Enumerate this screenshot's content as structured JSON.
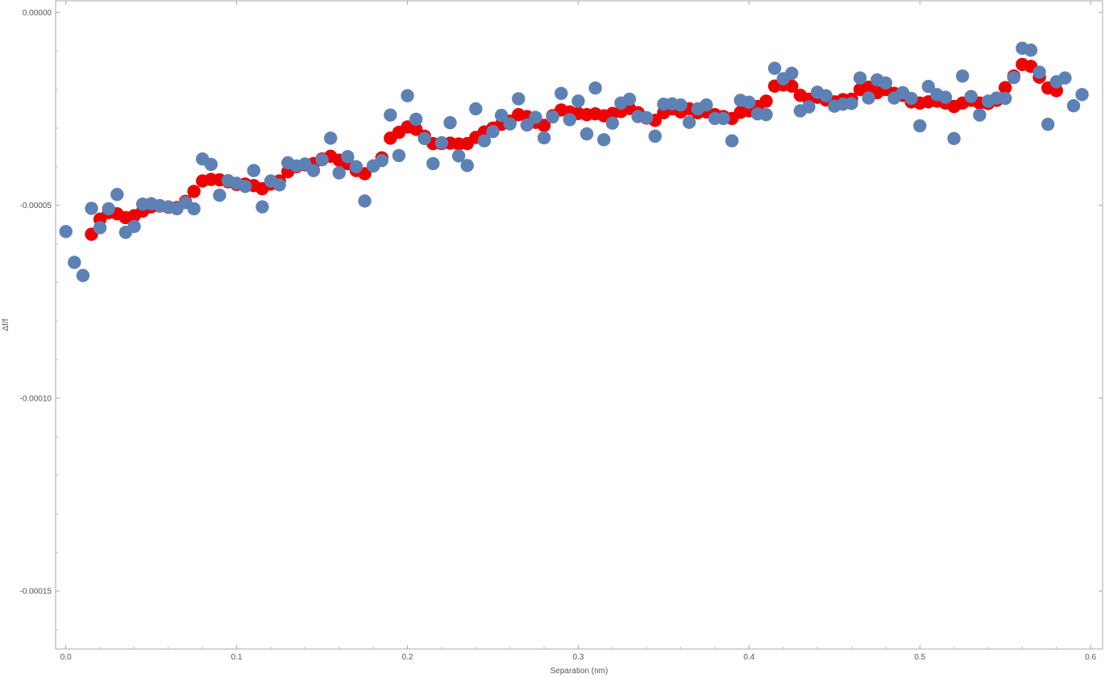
{
  "chart_data": {
    "type": "scatter",
    "xlabel": "Separation (nm)",
    "ylabel": "Δf/f",
    "xlim": [
      -0.006,
      0.607
    ],
    "ylim": [
      -0.000165,
      3e-06
    ],
    "xticks": [
      0.0,
      0.1,
      0.2,
      0.3,
      0.4,
      0.5,
      0.6
    ],
    "xtick_labels": [
      "0.0",
      "0.1",
      "0.2",
      "0.3",
      "0.4",
      "0.5",
      "0.6"
    ],
    "yticks": [
      0.0,
      -5e-05,
      -0.0001,
      -0.00015
    ],
    "ytick_labels": [
      "0.00000",
      "-0.00005",
      "-0.00010",
      "-0.00015"
    ],
    "grid": false,
    "series": [
      {
        "color": "#ee0000",
        "x": [
          0.015,
          0.02,
          0.025,
          0.03,
          0.035,
          0.04,
          0.045,
          0.05,
          0.055,
          0.06,
          0.065,
          0.07,
          0.075,
          0.08,
          0.085,
          0.09,
          0.095,
          0.1,
          0.105,
          0.11,
          0.115,
          0.12,
          0.125,
          0.13,
          0.135,
          0.14,
          0.145,
          0.15,
          0.155,
          0.16,
          0.165,
          0.17,
          0.175,
          0.18,
          0.185,
          0.19,
          0.195,
          0.2,
          0.205,
          0.21,
          0.215,
          0.22,
          0.225,
          0.23,
          0.235,
          0.24,
          0.245,
          0.25,
          0.255,
          0.26,
          0.265,
          0.27,
          0.275,
          0.28,
          0.285,
          0.29,
          0.295,
          0.3,
          0.305,
          0.31,
          0.315,
          0.32,
          0.325,
          0.33,
          0.335,
          0.34,
          0.345,
          0.35,
          0.355,
          0.36,
          0.365,
          0.37,
          0.375,
          0.38,
          0.385,
          0.39,
          0.395,
          0.4,
          0.405,
          0.41,
          0.415,
          0.42,
          0.425,
          0.43,
          0.435,
          0.44,
          0.445,
          0.45,
          0.455,
          0.46,
          0.465,
          0.47,
          0.475,
          0.48,
          0.485,
          0.49,
          0.495,
          0.5,
          0.505,
          0.51,
          0.515,
          0.52,
          0.525,
          0.53,
          0.535,
          0.54,
          0.545,
          0.55,
          0.555,
          0.56,
          0.565,
          0.57,
          0.575,
          0.58
        ],
        "y": [
          -5.75e-05,
          -5.36e-05,
          -5.19e-05,
          -5.22e-05,
          -5.32e-05,
          -5.27e-05,
          -5.15e-05,
          -5.04e-05,
          -5.02e-05,
          -5.05e-05,
          -5.06e-05,
          -4.9e-05,
          -4.64e-05,
          -4.37e-05,
          -4.33e-05,
          -4.34e-05,
          -4.39e-05,
          -4.46e-05,
          -4.45e-05,
          -4.49e-05,
          -4.57e-05,
          -4.45e-05,
          -4.37e-05,
          -4.13e-05,
          -4e-05,
          -3.95e-05,
          -3.92e-05,
          -3.8e-05,
          -3.73e-05,
          -3.83e-05,
          -3.92e-05,
          -4.1e-05,
          -4.18e-05,
          -3.98e-05,
          -3.77e-05,
          -3.26e-05,
          -3.11e-05,
          -2.97e-05,
          -3.03e-05,
          -3.21e-05,
          -3.4e-05,
          -3.4e-05,
          -3.39e-05,
          -3.41e-05,
          -3.4e-05,
          -3.24e-05,
          -3.1e-05,
          -3e-05,
          -2.9e-05,
          -2.82e-05,
          -2.65e-05,
          -2.7e-05,
          -2.85e-05,
          -2.93e-05,
          -2.68e-05,
          -2.53e-05,
          -2.58e-05,
          -2.62e-05,
          -2.65e-05,
          -2.63e-05,
          -2.68e-05,
          -2.62e-05,
          -2.57e-05,
          -2.49e-05,
          -2.6e-05,
          -2.74e-05,
          -2.8e-05,
          -2.6e-05,
          -2.5e-05,
          -2.58e-05,
          -2.5e-05,
          -2.6e-05,
          -2.58e-05,
          -2.65e-05,
          -2.7e-05,
          -2.75e-05,
          -2.59e-05,
          -2.55e-05,
          -2.44e-05,
          -2.3e-05,
          -1.91e-05,
          -1.88e-05,
          -1.91e-05,
          -2.15e-05,
          -2.25e-05,
          -2.2e-05,
          -2.27e-05,
          -2.32e-05,
          -2.26e-05,
          -2.25e-05,
          -2e-05,
          -1.94e-05,
          -2.08e-05,
          -2e-05,
          -2.1e-05,
          -2.15e-05,
          -2.32e-05,
          -2.35e-05,
          -2.32e-05,
          -2.3e-05,
          -2.35e-05,
          -2.44e-05,
          -2.35e-05,
          -2.28e-05,
          -2.35e-05,
          -2.36e-05,
          -2.28e-05,
          -1.95e-05,
          -1.65e-05,
          -1.35e-05,
          -1.4e-05,
          -1.68e-05,
          -1.96e-05,
          -2.03e-05
        ]
      },
      {
        "color": "#5e81b5",
        "x": [
          0.0,
          0.005,
          0.01,
          0.015,
          0.02,
          0.025,
          0.03,
          0.035,
          0.04,
          0.045,
          0.05,
          0.055,
          0.06,
          0.065,
          0.07,
          0.075,
          0.08,
          0.085,
          0.09,
          0.095,
          0.1,
          0.105,
          0.11,
          0.115,
          0.12,
          0.125,
          0.13,
          0.135,
          0.14,
          0.145,
          0.15,
          0.155,
          0.16,
          0.165,
          0.17,
          0.175,
          0.18,
          0.185,
          0.19,
          0.195,
          0.2,
          0.205,
          0.21,
          0.215,
          0.22,
          0.225,
          0.23,
          0.235,
          0.24,
          0.245,
          0.25,
          0.255,
          0.26,
          0.265,
          0.27,
          0.275,
          0.28,
          0.285,
          0.29,
          0.295,
          0.3,
          0.305,
          0.31,
          0.315,
          0.32,
          0.325,
          0.33,
          0.335,
          0.34,
          0.345,
          0.35,
          0.355,
          0.36,
          0.365,
          0.37,
          0.375,
          0.38,
          0.385,
          0.39,
          0.395,
          0.4,
          0.405,
          0.41,
          0.415,
          0.42,
          0.425,
          0.43,
          0.435,
          0.44,
          0.445,
          0.45,
          0.455,
          0.46,
          0.465,
          0.47,
          0.475,
          0.48,
          0.485,
          0.49,
          0.495,
          0.5,
          0.505,
          0.51,
          0.515,
          0.52,
          0.525,
          0.53,
          0.535,
          0.54,
          0.545,
          0.55,
          0.555,
          0.56,
          0.565,
          0.57,
          0.575,
          0.58,
          0.585,
          0.59,
          0.595
        ],
        "y": [
          -5.68e-05,
          -6.48e-05,
          -6.82e-05,
          -5.08e-05,
          -5.58e-05,
          -5.09e-05,
          -4.72e-05,
          -5.7e-05,
          -5.55e-05,
          -4.97e-05,
          -4.96e-05,
          -5.01e-05,
          -5.04e-05,
          -5.09e-05,
          -4.93e-05,
          -5.09e-05,
          -3.8e-05,
          -3.94e-05,
          -4.74e-05,
          -4.36e-05,
          -4.43e-05,
          -4.51e-05,
          -4.1e-05,
          -5.04e-05,
          -4.37e-05,
          -4.47e-05,
          -3.9e-05,
          -3.98e-05,
          -3.93e-05,
          -4.1e-05,
          -3.82e-05,
          -3.26e-05,
          -4.16e-05,
          -3.74e-05,
          -4e-05,
          -4.89e-05,
          -3.98e-05,
          -3.84e-05,
          -2.66e-05,
          -3.71e-05,
          -2.16e-05,
          -2.77e-05,
          -3.27e-05,
          -3.92e-05,
          -3.38e-05,
          -2.86e-05,
          -3.72e-05,
          -3.97e-05,
          -2.5e-05,
          -3.33e-05,
          -3.09e-05,
          -2.67e-05,
          -2.89e-05,
          -2.24e-05,
          -2.92e-05,
          -2.72e-05,
          -3.25e-05,
          -2.71e-05,
          -2.1e-05,
          -2.78e-05,
          -2.3e-05,
          -3.15e-05,
          -1.96e-05,
          -3.3e-05,
          -2.87e-05,
          -2.35e-05,
          -2.25e-05,
          -2.7e-05,
          -2.73e-05,
          -3.21e-05,
          -2.38e-05,
          -2.37e-05,
          -2.4e-05,
          -2.85e-05,
          -2.5e-05,
          -2.4e-05,
          -2.75e-05,
          -2.75e-05,
          -3.33e-05,
          -2.28e-05,
          -2.33e-05,
          -2.63e-05,
          -2.65e-05,
          -1.45e-05,
          -1.72e-05,
          -1.58e-05,
          -2.55e-05,
          -2.45e-05,
          -2.07e-05,
          -2.16e-05,
          -2.43e-05,
          -2.38e-05,
          -2.36e-05,
          -1.7e-05,
          -2.22e-05,
          -1.75e-05,
          -1.83e-05,
          -2.22e-05,
          -2.08e-05,
          -2.23e-05,
          -2.94e-05,
          -1.92e-05,
          -2.13e-05,
          -2.2e-05,
          -3.27e-05,
          -1.65e-05,
          -2.18e-05,
          -2.66e-05,
          -2.3e-05,
          -2.22e-05,
          -2.23e-05,
          -1.69e-05,
          -9.3e-06,
          -9.8e-06,
          -1.55e-05,
          -2.9e-05,
          -1.8e-05,
          -1.7e-05,
          -2.42e-05,
          -2.13e-05
        ]
      }
    ]
  }
}
